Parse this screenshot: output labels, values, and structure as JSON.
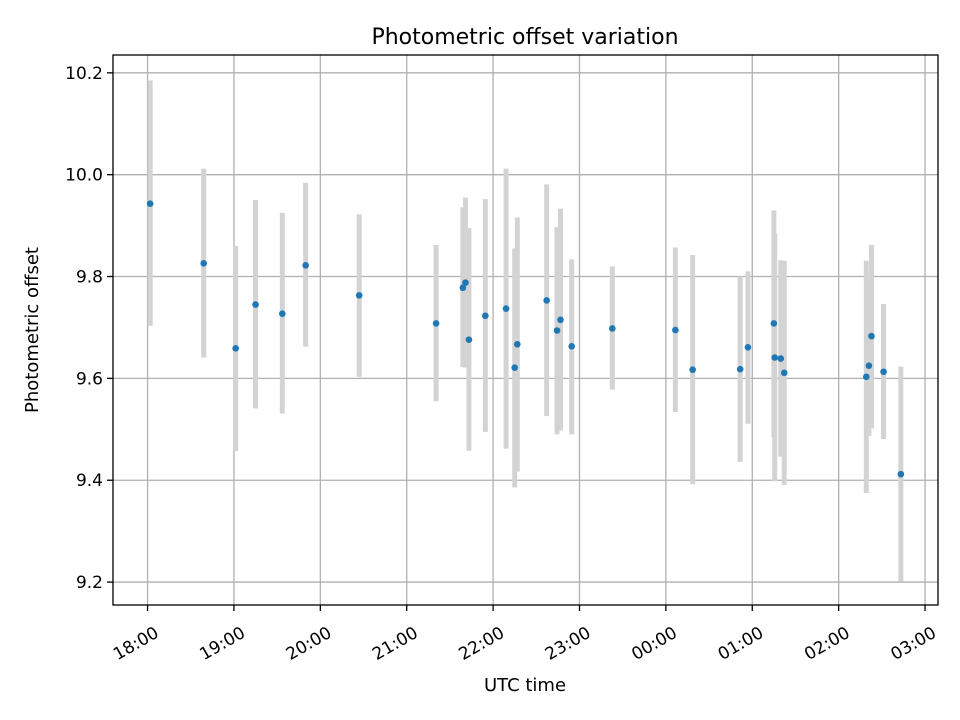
{
  "chart_data": {
    "type": "scatter",
    "title": "Photometric offset variation",
    "xlabel": "UTC time",
    "ylabel": "Photometric offset",
    "x_unit": "hours from 18:00 UTC",
    "xlim": [
      -0.4,
      9.15
    ],
    "ylim": [
      9.155,
      10.235
    ],
    "x_ticks": [
      {
        "value": 0,
        "label": "18:00"
      },
      {
        "value": 1,
        "label": "19:00"
      },
      {
        "value": 2,
        "label": "20:00"
      },
      {
        "value": 3,
        "label": "21:00"
      },
      {
        "value": 4,
        "label": "22:00"
      },
      {
        "value": 5,
        "label": "23:00"
      },
      {
        "value": 6,
        "label": "00:00"
      },
      {
        "value": 7,
        "label": "01:00"
      },
      {
        "value": 8,
        "label": "02:00"
      },
      {
        "value": 9,
        "label": "03:00"
      }
    ],
    "y_ticks": [
      {
        "value": 9.2,
        "label": "9.2"
      },
      {
        "value": 9.4,
        "label": "9.4"
      },
      {
        "value": 9.6,
        "label": "9.6"
      },
      {
        "value": 9.8,
        "label": "9.8"
      },
      {
        "value": 10.0,
        "label": "10.0"
      },
      {
        "value": 10.2,
        "label": "10.2"
      }
    ],
    "grid": true,
    "point_color": "#1f77b4",
    "errorbar_color": "#d3d3d3",
    "points": [
      {
        "x": 0.03,
        "y": 9.943,
        "lo": 9.703,
        "hi": 10.185
      },
      {
        "x": 0.65,
        "y": 9.826,
        "lo": 9.641,
        "hi": 10.012
      },
      {
        "x": 1.02,
        "y": 9.659,
        "lo": 9.457,
        "hi": 9.86
      },
      {
        "x": 1.25,
        "y": 9.745,
        "lo": 9.541,
        "hi": 9.95
      },
      {
        "x": 1.56,
        "y": 9.727,
        "lo": 9.531,
        "hi": 9.925
      },
      {
        "x": 1.83,
        "y": 9.822,
        "lo": 9.662,
        "hi": 9.984
      },
      {
        "x": 2.45,
        "y": 9.763,
        "lo": 9.603,
        "hi": 9.922
      },
      {
        "x": 3.34,
        "y": 9.708,
        "lo": 9.555,
        "hi": 9.862
      },
      {
        "x": 3.65,
        "y": 9.778,
        "lo": 9.622,
        "hi": 9.936
      },
      {
        "x": 3.68,
        "y": 9.788,
        "lo": 9.621,
        "hi": 9.955
      },
      {
        "x": 3.72,
        "y": 9.676,
        "lo": 9.458,
        "hi": 9.895
      },
      {
        "x": 3.91,
        "y": 9.723,
        "lo": 9.495,
        "hi": 9.952
      },
      {
        "x": 4.15,
        "y": 9.737,
        "lo": 9.462,
        "hi": 10.012
      },
      {
        "x": 4.25,
        "y": 9.621,
        "lo": 9.386,
        "hi": 9.855
      },
      {
        "x": 4.28,
        "y": 9.667,
        "lo": 9.417,
        "hi": 9.916
      },
      {
        "x": 4.62,
        "y": 9.753,
        "lo": 9.526,
        "hi": 9.981
      },
      {
        "x": 4.74,
        "y": 9.694,
        "lo": 9.49,
        "hi": 9.897
      },
      {
        "x": 4.78,
        "y": 9.715,
        "lo": 9.498,
        "hi": 9.933
      },
      {
        "x": 4.91,
        "y": 9.663,
        "lo": 9.49,
        "hi": 9.834
      },
      {
        "x": 5.38,
        "y": 9.698,
        "lo": 9.578,
        "hi": 9.82
      },
      {
        "x": 6.11,
        "y": 9.695,
        "lo": 9.534,
        "hi": 9.857
      },
      {
        "x": 6.31,
        "y": 9.617,
        "lo": 9.392,
        "hi": 9.842
      },
      {
        "x": 6.86,
        "y": 9.618,
        "lo": 9.436,
        "hi": 9.8
      },
      {
        "x": 6.95,
        "y": 9.661,
        "lo": 9.511,
        "hi": 9.81
      },
      {
        "x": 7.25,
        "y": 9.708,
        "lo": 9.485,
        "hi": 9.93
      },
      {
        "x": 7.26,
        "y": 9.641,
        "lo": 9.398,
        "hi": 9.884
      },
      {
        "x": 7.33,
        "y": 9.639,
        "lo": 9.446,
        "hi": 9.832
      },
      {
        "x": 7.37,
        "y": 9.611,
        "lo": 9.391,
        "hi": 9.831
      },
      {
        "x": 8.32,
        "y": 9.603,
        "lo": 9.375,
        "hi": 9.831
      },
      {
        "x": 8.35,
        "y": 9.625,
        "lo": 9.487,
        "hi": 9.795
      },
      {
        "x": 8.38,
        "y": 9.683,
        "lo": 9.502,
        "hi": 9.862
      },
      {
        "x": 8.52,
        "y": 9.613,
        "lo": 9.481,
        "hi": 9.746
      },
      {
        "x": 8.72,
        "y": 9.412,
        "lo": 9.201,
        "hi": 9.623
      }
    ]
  }
}
